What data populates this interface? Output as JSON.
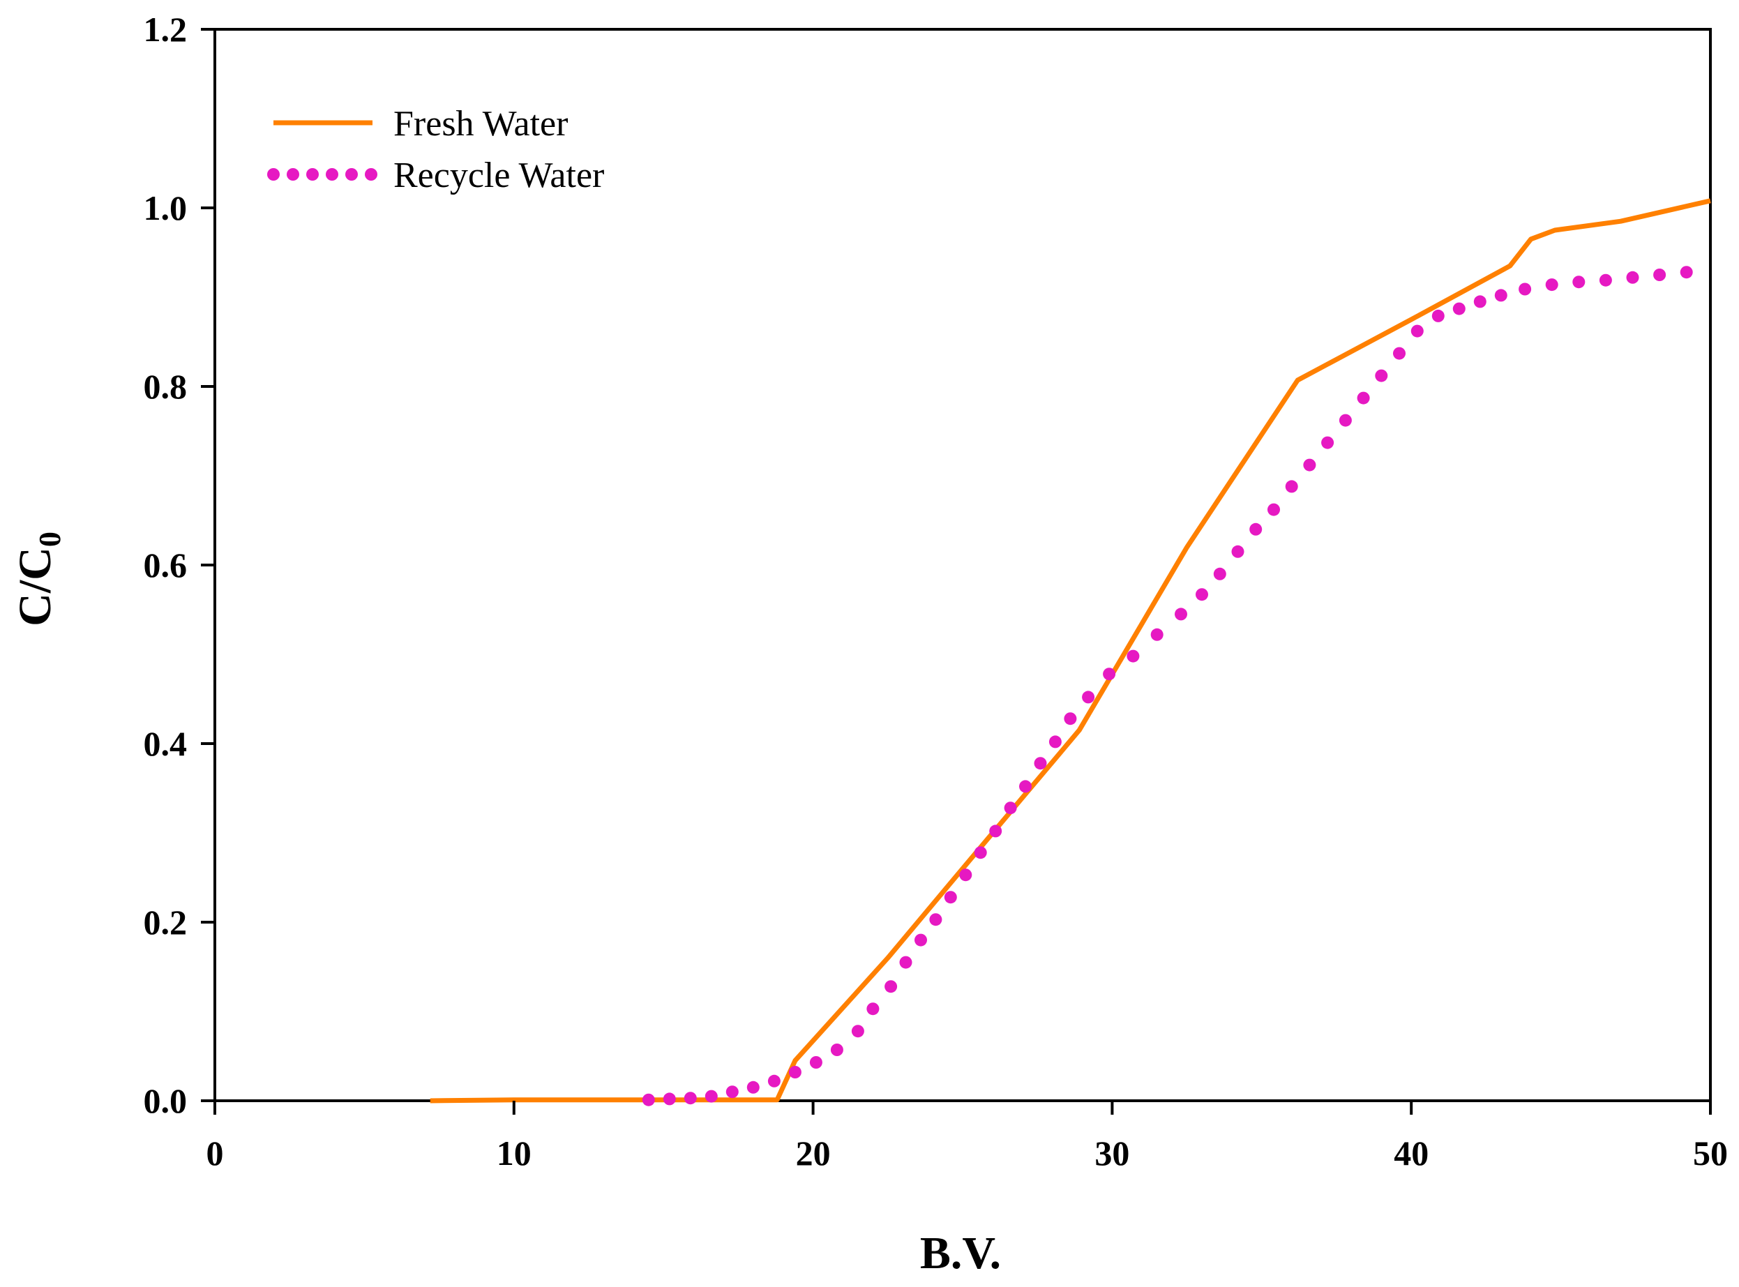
{
  "chart_data": {
    "type": "line",
    "title": "",
    "xlabel": "B.V.",
    "ylabel": "C/C0",
    "ylabel_parts": {
      "main": "C/C",
      "subscript": "0"
    },
    "xlim": [
      0,
      50
    ],
    "ylim": [
      0,
      1.2
    ],
    "x_ticks": [
      0,
      10,
      20,
      30,
      40,
      50
    ],
    "x_tick_labels": [
      "0",
      "10",
      "20",
      "30",
      "40",
      "50"
    ],
    "y_ticks": [
      0,
      0.2,
      0.4,
      0.6,
      0.8,
      1.0,
      1.2
    ],
    "y_tick_labels": [
      "0.0",
      "0.2",
      "0.4",
      "0.6",
      "0.8",
      "1.0",
      "1.2"
    ],
    "grid": false,
    "legend_position": "top-left",
    "series": [
      {
        "name": "Fresh Water",
        "style": "solid",
        "color": "#ff8000",
        "x": [
          7.2,
          10,
          15,
          18.8,
          19.4,
          22.5,
          25,
          28.9,
          32.5,
          36.2,
          40,
          43.3,
          44,
          44.8,
          47,
          50
        ],
        "y": [
          0,
          0.001,
          0.001,
          0.001,
          0.045,
          0.16,
          0.26,
          0.415,
          0.62,
          0.807,
          0.875,
          0.935,
          0.965,
          0.975,
          0.985,
          1.008
        ]
      },
      {
        "name": "Recycle Water",
        "style": "dotted",
        "color": "#e619c2",
        "x": [
          14.5,
          15.2,
          15.9,
          16.6,
          17.3,
          18.0,
          18.7,
          19.4,
          20.1,
          20.8,
          21.5,
          22.0,
          22.6,
          23.1,
          23.6,
          24.1,
          24.6,
          25.1,
          25.6,
          26.1,
          26.6,
          27.1,
          27.6,
          28.1,
          28.6,
          29.2,
          29.9,
          30.7,
          31.5,
          32.3,
          33.0,
          33.6,
          34.2,
          34.8,
          35.4,
          36.0,
          36.6,
          37.2,
          37.8,
          38.4,
          39.0,
          39.6,
          40.2,
          40.9,
          41.6,
          42.3,
          43.0,
          43.8,
          44.7,
          45.6,
          46.5,
          47.4,
          48.3,
          49.2
        ],
        "y": [
          0.001,
          0.002,
          0.003,
          0.005,
          0.01,
          0.015,
          0.022,
          0.032,
          0.043,
          0.057,
          0.078,
          0.103,
          0.128,
          0.155,
          0.18,
          0.203,
          0.228,
          0.253,
          0.278,
          0.302,
          0.328,
          0.352,
          0.378,
          0.402,
          0.428,
          0.452,
          0.478,
          0.498,
          0.522,
          0.545,
          0.567,
          0.59,
          0.615,
          0.64,
          0.662,
          0.688,
          0.712,
          0.737,
          0.762,
          0.787,
          0.812,
          0.837,
          0.862,
          0.879,
          0.887,
          0.895,
          0.902,
          0.909,
          0.914,
          0.917,
          0.919,
          0.922,
          0.925,
          0.928
        ]
      }
    ]
  }
}
